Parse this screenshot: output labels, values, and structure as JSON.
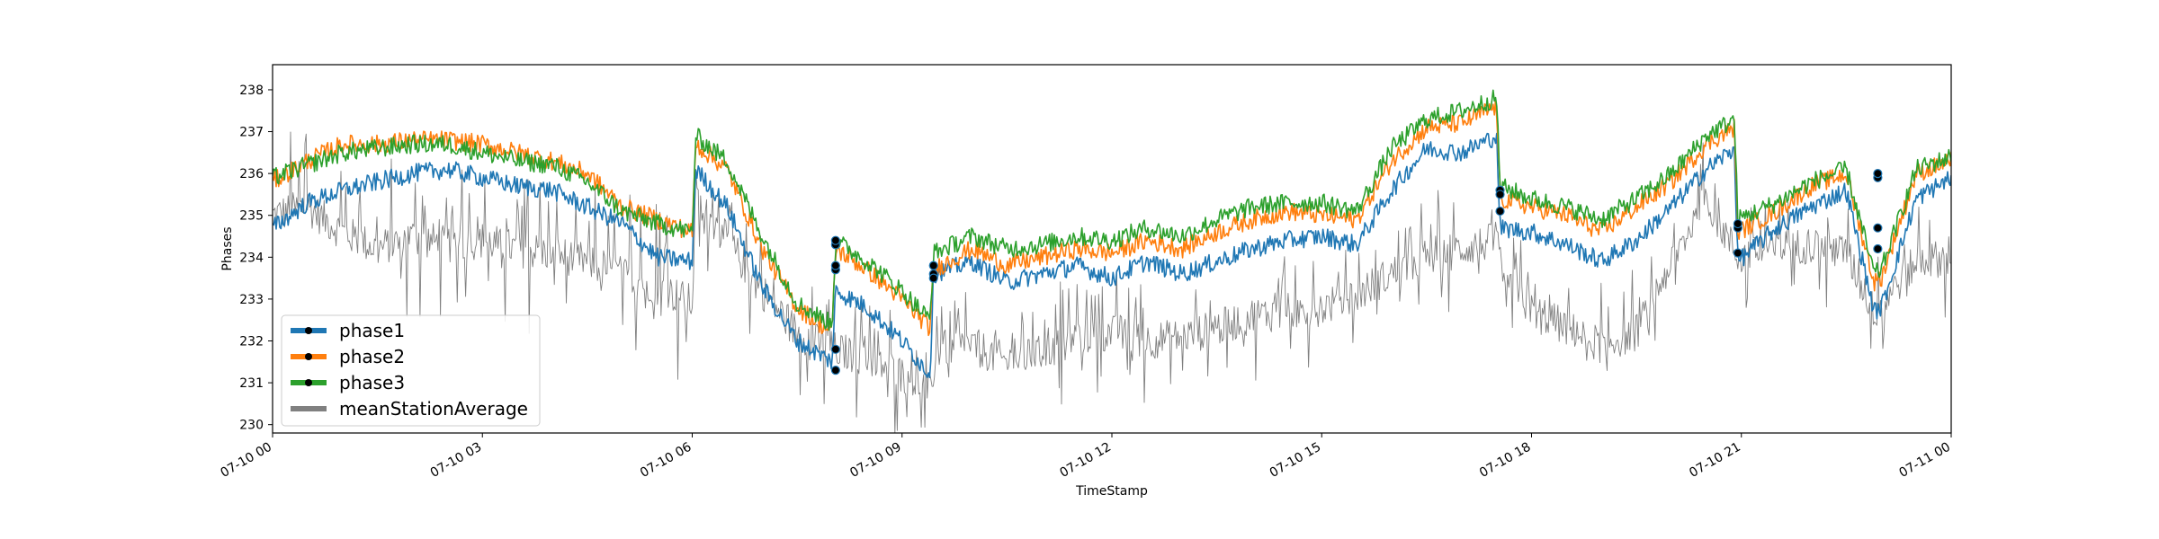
{
  "chart_data": {
    "type": "line",
    "title": "",
    "xlabel": "TimeStamp",
    "ylabel": "Phases",
    "xlim": [
      "07-10 00:00",
      "07-11 00:00"
    ],
    "ylim": [
      229.8,
      238.6
    ],
    "x_ticks": [
      "07-10 00",
      "07-10 03",
      "07-10 06",
      "07-10 09",
      "07-10 12",
      "07-10 15",
      "07-10 18",
      "07-10 21",
      "07-11 00"
    ],
    "y_ticks": [
      230,
      231,
      232,
      233,
      234,
      235,
      236,
      237,
      238
    ],
    "grid": false,
    "legend_position": "lower-left",
    "x_unit": "hours since 07-10 00:00",
    "series": [
      {
        "name": "phase1",
        "color": "#1f77b4",
        "x": [
          0,
          0.5,
          1,
          1.5,
          2,
          2.5,
          3,
          3.5,
          4,
          4.5,
          5,
          5.5,
          6,
          6.05,
          6.5,
          7,
          7.5,
          8,
          8.05,
          8.5,
          9,
          9.4,
          9.45,
          10,
          10.5,
          11,
          11.5,
          12,
          12.5,
          13,
          13.5,
          14,
          14.5,
          15,
          15.5,
          16,
          16.5,
          17,
          17.5,
          17.55,
          18,
          18.5,
          19,
          19.5,
          20,
          20.5,
          20.9,
          20.95,
          21.5,
          22,
          22.5,
          22.9,
          23,
          23.5,
          24
        ],
        "y": [
          234.7,
          235.3,
          235.6,
          235.8,
          236.0,
          236.1,
          235.9,
          235.7,
          235.6,
          235.2,
          234.8,
          234.0,
          233.9,
          236.1,
          235.2,
          233.3,
          232.0,
          231.5,
          233.2,
          232.8,
          232.0,
          231.2,
          233.6,
          233.9,
          233.4,
          233.6,
          233.8,
          233.5,
          233.9,
          233.6,
          233.9,
          234.2,
          234.4,
          234.5,
          234.3,
          235.6,
          236.6,
          236.5,
          236.9,
          234.7,
          234.6,
          234.3,
          233.9,
          234.4,
          235.2,
          236.1,
          236.6,
          233.9,
          234.7,
          235.2,
          235.6,
          232.7,
          232.8,
          235.4,
          235.9
        ]
      },
      {
        "name": "phase2",
        "color": "#ff7f0e",
        "x": [
          0,
          0.5,
          1,
          1.5,
          2,
          2.5,
          3,
          3.5,
          4,
          4.5,
          5,
          5.5,
          6,
          6.05,
          6.5,
          7,
          7.5,
          8,
          8.05,
          8.5,
          9,
          9.4,
          9.45,
          10,
          10.5,
          11,
          11.5,
          12,
          12.5,
          13,
          13.5,
          14,
          14.5,
          15,
          15.5,
          16,
          16.5,
          17,
          17.5,
          17.55,
          18,
          18.5,
          19,
          19.5,
          20,
          20.5,
          20.9,
          20.95,
          21.5,
          22,
          22.5,
          22.9,
          23,
          23.5,
          24
        ],
        "y": [
          235.8,
          236.3,
          236.7,
          236.7,
          236.8,
          236.8,
          236.7,
          236.5,
          236.3,
          236.0,
          235.2,
          234.9,
          234.6,
          236.7,
          236.1,
          234.2,
          232.8,
          232.2,
          234.2,
          233.7,
          233.0,
          232.3,
          233.7,
          234.2,
          233.8,
          234.0,
          234.2,
          234.1,
          234.4,
          234.2,
          234.6,
          234.9,
          235.1,
          235.0,
          234.9,
          236.3,
          237.1,
          237.2,
          237.6,
          235.4,
          235.2,
          235.0,
          234.6,
          235.2,
          235.8,
          236.7,
          237.1,
          234.6,
          235.1,
          235.7,
          236.0,
          233.4,
          233.5,
          236.0,
          236.3
        ]
      },
      {
        "name": "phase3",
        "color": "#2ca02c",
        "x": [
          0,
          0.5,
          1,
          1.5,
          2,
          2.5,
          3,
          3.5,
          4,
          4.5,
          5,
          5.5,
          6,
          6.05,
          6.5,
          7,
          7.5,
          8,
          8.05,
          8.5,
          9,
          9.4,
          9.45,
          10,
          10.5,
          11,
          11.5,
          12,
          12.5,
          13,
          13.5,
          14,
          14.5,
          15,
          15.5,
          16,
          16.5,
          17,
          17.5,
          17.55,
          18,
          18.5,
          19,
          19.5,
          20,
          20.5,
          20.9,
          20.95,
          21.5,
          22,
          22.5,
          22.9,
          23,
          23.5,
          24
        ],
        "y": [
          235.9,
          236.2,
          236.5,
          236.6,
          236.7,
          236.7,
          236.5,
          236.3,
          236.2,
          235.8,
          235.1,
          234.8,
          234.6,
          236.9,
          236.3,
          234.5,
          232.9,
          232.4,
          234.4,
          233.9,
          233.2,
          232.5,
          234.1,
          234.5,
          234.2,
          234.3,
          234.5,
          234.4,
          234.7,
          234.5,
          234.9,
          235.2,
          235.3,
          235.3,
          235.1,
          236.6,
          237.3,
          237.5,
          237.8,
          235.7,
          235.4,
          235.2,
          234.9,
          235.4,
          236.0,
          236.9,
          237.3,
          234.9,
          235.3,
          235.8,
          236.1,
          233.6,
          233.7,
          236.1,
          236.4
        ]
      },
      {
        "name": "meanStationAverage",
        "color": "#808080",
        "x": [
          0,
          0.5,
          1,
          1.5,
          2,
          2.5,
          3,
          3.5,
          4,
          4.5,
          5,
          5.5,
          6,
          6.05,
          6.5,
          7,
          7.5,
          8,
          8.5,
          9,
          9.4,
          9.5,
          10,
          10.5,
          11,
          11.5,
          12,
          12.5,
          13,
          13.5,
          14,
          14.5,
          15,
          15.5,
          16,
          16.5,
          17,
          17.5,
          17.6,
          18,
          18.5,
          19,
          19.5,
          20,
          20.5,
          20.95,
          21.5,
          22,
          22.5,
          22.9,
          23,
          23.5,
          24
        ],
        "y": [
          235.0,
          235.2,
          234.6,
          234.2,
          234.5,
          234.3,
          234.4,
          234.2,
          234.1,
          233.9,
          233.6,
          233.3,
          232.9,
          235.3,
          234.4,
          233.2,
          232.2,
          231.8,
          231.6,
          231.2,
          230.8,
          231.8,
          231.9,
          231.5,
          231.7,
          232.1,
          232.2,
          232.0,
          232.1,
          232.3,
          232.6,
          232.7,
          232.8,
          233.1,
          233.6,
          234.0,
          234.2,
          234.4,
          233.3,
          232.8,
          232.3,
          231.9,
          232.2,
          233.9,
          235.4,
          234.0,
          234.2,
          234.3,
          234.1,
          232.7,
          232.9,
          233.9,
          234.0
        ]
      }
    ],
    "markers": [
      {
        "x": 8.05,
        "y": [
          231.3,
          233.7,
          233.8,
          234.3,
          234.4,
          231.8
        ]
      },
      {
        "x": 9.45,
        "y": [
          233.6,
          233.8,
          233.5
        ]
      },
      {
        "x": 17.55,
        "y": [
          235.1,
          235.6,
          235.5
        ]
      },
      {
        "x": 20.95,
        "y": [
          234.1,
          234.7,
          234.8
        ]
      },
      {
        "x": 22.95,
        "y": [
          234.2,
          234.7,
          235.9,
          236.0
        ]
      }
    ]
  }
}
